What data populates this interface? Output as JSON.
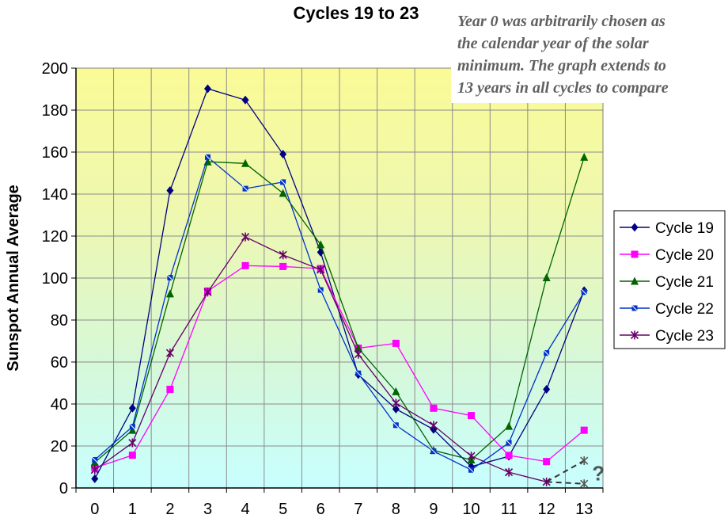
{
  "chart_data": {
    "type": "line",
    "title": "Cycles 19 to 23",
    "xlabel": "",
    "ylabel": "Sunspot Annual Average",
    "x": [
      0,
      1,
      2,
      3,
      4,
      5,
      6,
      7,
      8,
      9,
      10,
      11,
      12,
      13
    ],
    "xlim": [
      0,
      13
    ],
    "ylim": [
      0,
      200
    ],
    "y_ticks": [
      0,
      20,
      40,
      60,
      80,
      100,
      120,
      140,
      160,
      180,
      200
    ],
    "grid": true,
    "background": "vertical gradient yellow to light cyan",
    "legend_position": "right",
    "note": [
      "Year 0 was arbitrarily chosen as",
      "the calendar year of the solar",
      "minimum. The graph extends to",
      "13 years in all cycles to compare"
    ],
    "series": [
      {
        "name": "Cycle 19",
        "color": "#000080",
        "marker": "diamond",
        "values": [
          4.4,
          38,
          141.7,
          190.2,
          184.8,
          159,
          112.3,
          54,
          37.6,
          27.9,
          10.2,
          15.1,
          47,
          94
        ]
      },
      {
        "name": "Cycle 20",
        "color": "#ff00ff",
        "marker": "square",
        "values": [
          9.6,
          15.6,
          47,
          93.8,
          105.9,
          105.5,
          104.5,
          66.6,
          68.9,
          38,
          34.5,
          15.5,
          12.6,
          27.5
        ]
      },
      {
        "name": "Cycle 21",
        "color": "#006400",
        "marker": "triangle",
        "values": [
          12.2,
          27.5,
          92.5,
          155.4,
          154.6,
          140.4,
          115.9,
          66.6,
          45.9,
          17.9,
          13.4,
          29.4,
          100.2,
          157.6
        ]
      },
      {
        "name": "Cycle 22",
        "color": "#0033cc",
        "marker": "x-square",
        "values": [
          13.4,
          29.2,
          100.2,
          157.6,
          142.6,
          145.7,
          94.3,
          54.6,
          29.9,
          17.5,
          8.6,
          21.5,
          64.3,
          93.3
        ]
      },
      {
        "name": "Cycle 23",
        "color": "#660066",
        "marker": "star",
        "values": [
          8.6,
          21.5,
          64.3,
          93.3,
          119.6,
          111,
          104,
          63.7,
          40.4,
          29.8,
          15.2,
          7.5,
          2.9,
          null
        ]
      }
    ],
    "projection": {
      "color": "#333333",
      "style": "dashed",
      "lines": [
        {
          "x": [
            12,
            13
          ],
          "values": [
            2.9,
            13
          ]
        },
        {
          "x": [
            12,
            13
          ],
          "values": [
            2.9,
            2
          ]
        }
      ],
      "marker_label": "?"
    }
  }
}
